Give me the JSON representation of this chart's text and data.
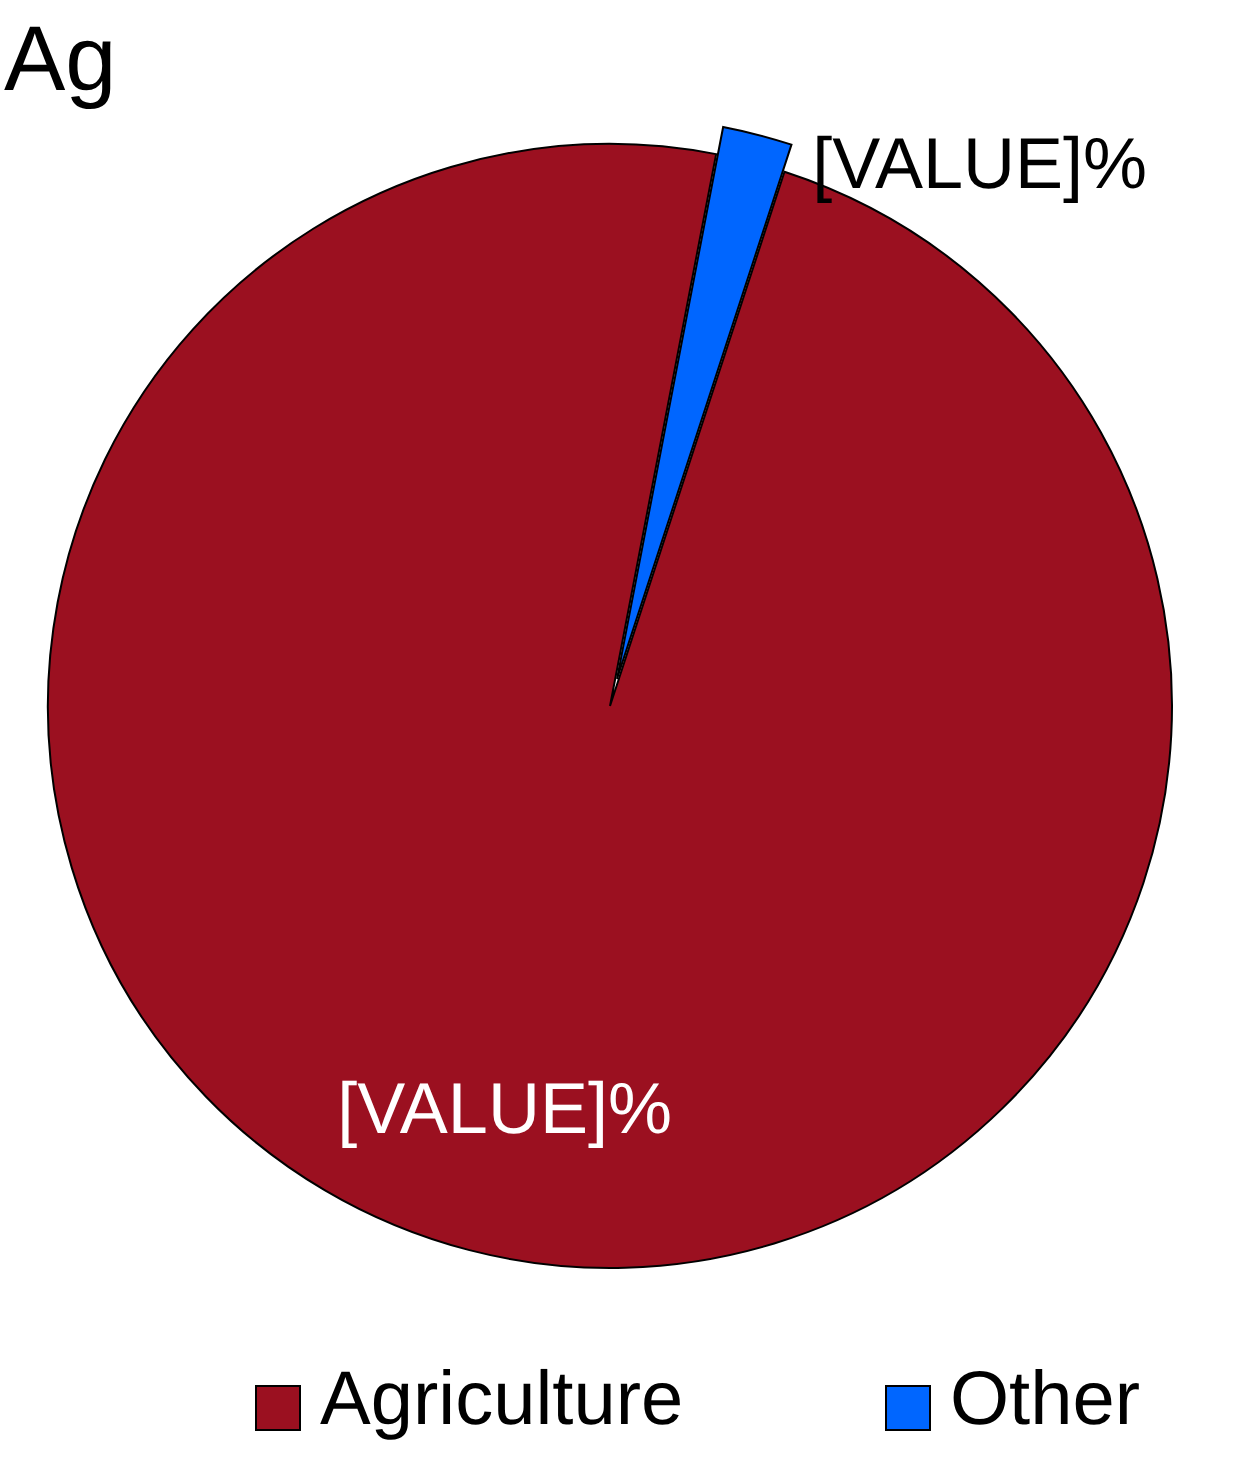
{
  "chart_data": {
    "type": "pie",
    "title": "Ag",
    "categories": [
      "Agriculture",
      "Other"
    ],
    "values": [
      98,
      2
    ],
    "colors": [
      "#9b1020",
      "#0066ff"
    ],
    "value_labels": [
      "[VALUE]%",
      "[VALUE]%"
    ],
    "legend": "bottom"
  }
}
